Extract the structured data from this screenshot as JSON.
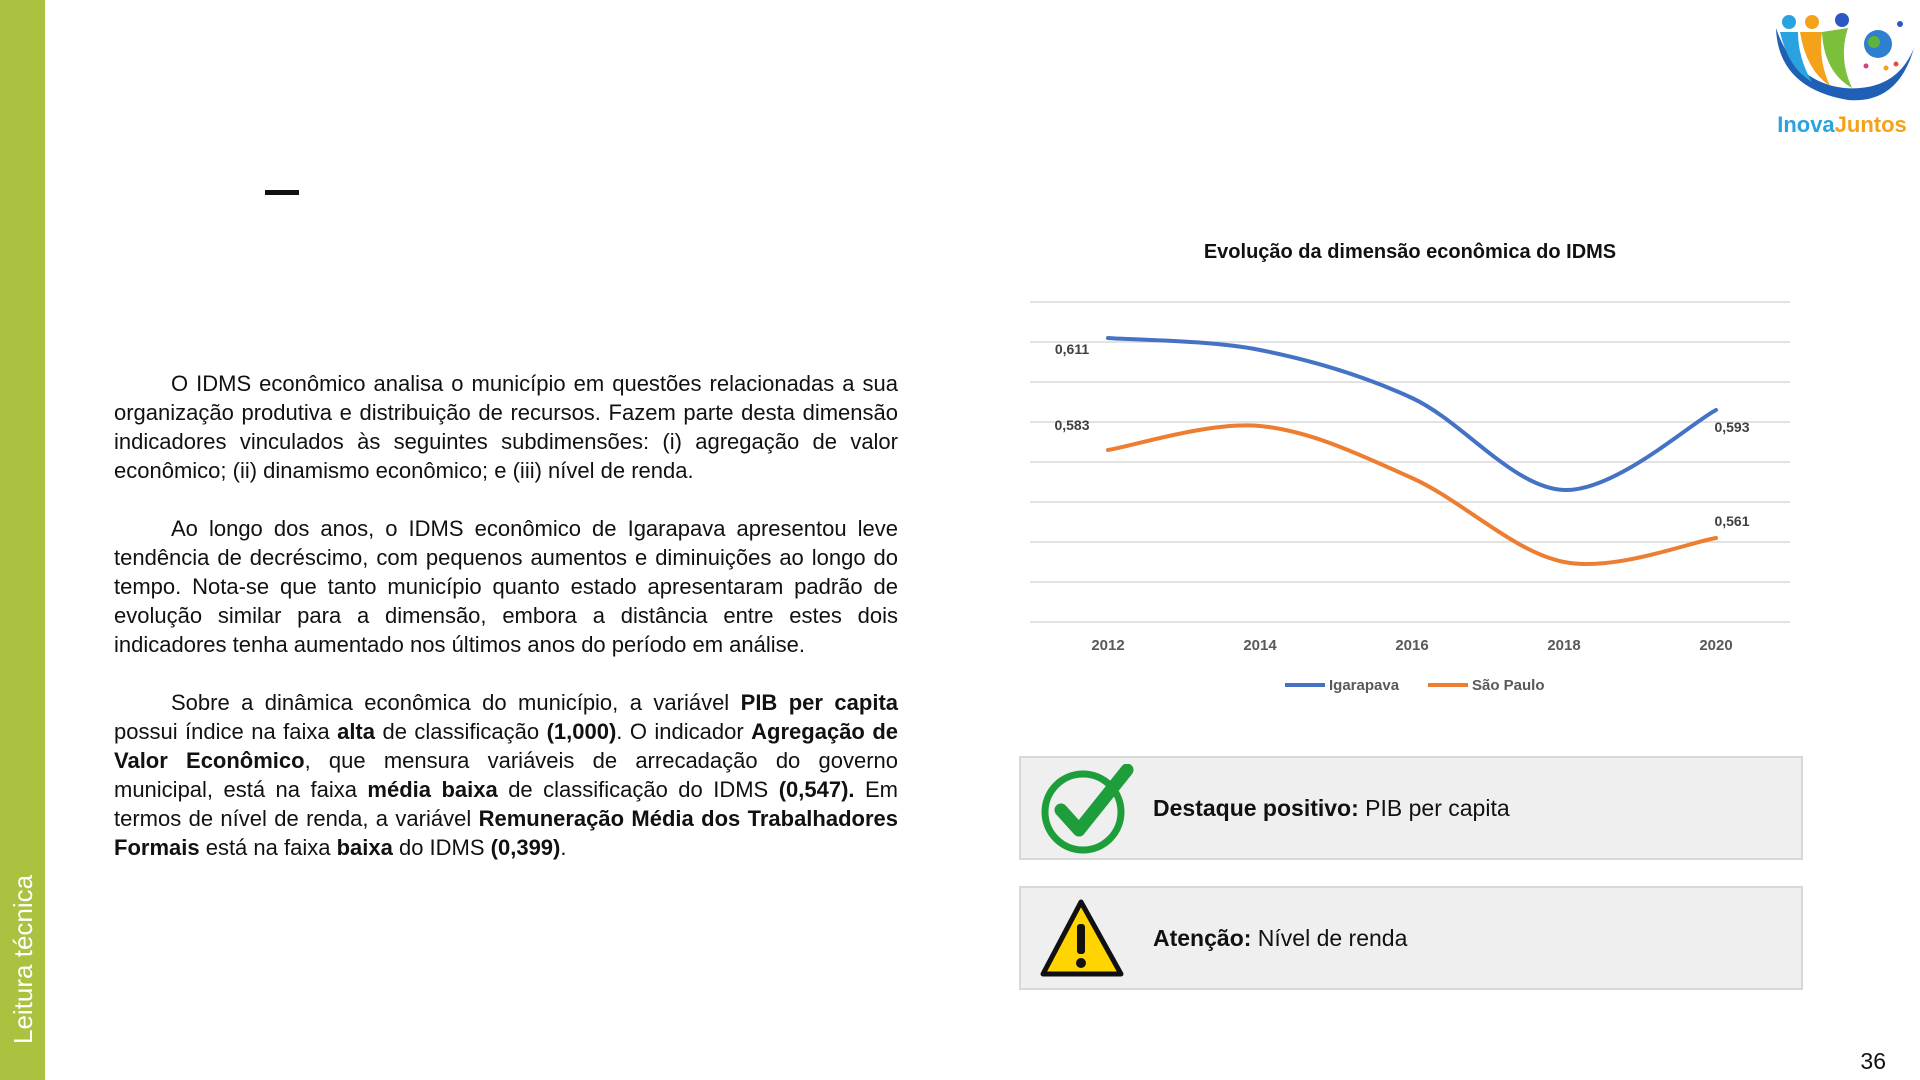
{
  "sidebar": {
    "label": "Leitura técnica"
  },
  "logo": {
    "text": "InovaJuntos"
  },
  "body": {
    "p1": "O IDMS econômico analisa o município em questões relacionadas a sua organização produtiva e distribuição de recursos. Fazem parte desta dimensão indicadores vinculados às seguintes subdimensões: (i) agregação de valor econômico; (ii) dinamismo econômico; e (iii) nível de renda.",
    "p2": "Ao longo dos anos, o IDMS econômico de Igarapava apresentou leve tendência de decréscimo, com pequenos aumentos e diminuições ao longo do tempo. Nota-se que tanto município quanto estado apresentaram padrão de evolução similar para a dimensão, embora a distância entre estes dois indicadores tenha aumentado nos últimos anos do período em análise.",
    "p3": {
      "t1": "Sobre a dinâmica econômica do município, a variável ",
      "b1": "PIB per capita",
      "t2": " possui índice na faixa ",
      "b2": "alta",
      "t3": " de classificação ",
      "b3": "(1,000)",
      "t4": ". O indicador ",
      "b4": "Agregação de Valor Econômico",
      "t5": ", que mensura variáveis de arrecadação do governo municipal, está na faixa ",
      "b5": "média baixa",
      "t6": " de classificação do IDMS ",
      "b6": "(0,547).",
      "t7": " Em termos de nível de renda, a variável ",
      "b7": "Remuneração Média dos Trabalhadores Formais",
      "t8": " está na faixa ",
      "b8": "baixa",
      "t9": " do IDMS ",
      "b9": "(0,399)",
      "t10": "."
    }
  },
  "chart_data": {
    "type": "line",
    "title": "Evolução da dimensão econômica do IDMS",
    "categories": [
      "2012",
      "2014",
      "2016",
      "2018",
      "2020"
    ],
    "ylim": [
      0.54,
      0.62
    ],
    "grid": true,
    "smooth": true,
    "legend": "bottom",
    "series": [
      {
        "name": "Igarapava",
        "color": "#4472c4",
        "values": [
          0.611,
          0.608,
          0.596,
          0.573,
          0.593
        ],
        "labels": [
          "0,611",
          null,
          null,
          null,
          "0,593"
        ]
      },
      {
        "name": "São Paulo",
        "color": "#ed7d31",
        "values": [
          0.583,
          0.589,
          0.576,
          0.555,
          0.561
        ],
        "labels": [
          "0,583",
          null,
          null,
          null,
          "0,561"
        ]
      }
    ]
  },
  "highlights": {
    "positive": {
      "label": "Destaque positivo:",
      "value": " PIB per capita",
      "icon": "checkmark-icon",
      "color": "#1e9e3a"
    },
    "warning": {
      "label": "Atenção:",
      "value": " Nível de renda",
      "icon": "warning-icon",
      "color": "#ffd400"
    }
  },
  "page_number": "36"
}
